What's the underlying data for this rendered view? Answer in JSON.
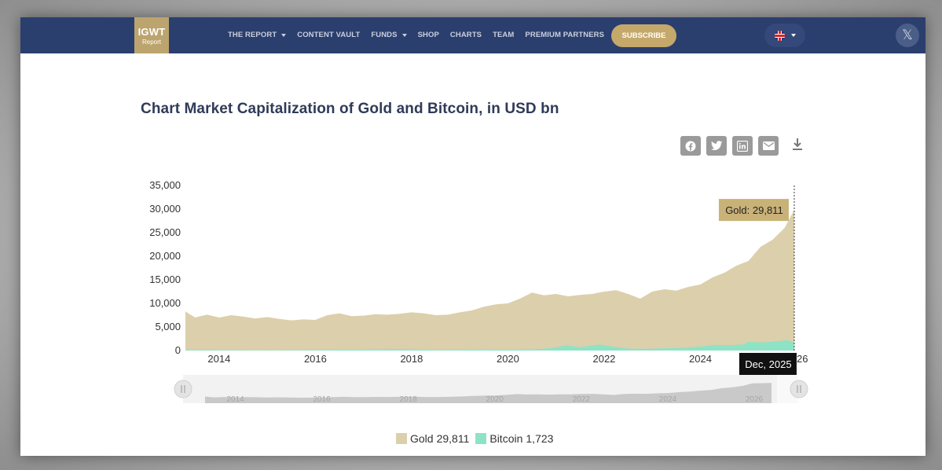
{
  "header": {
    "logo_main": "IGWT",
    "logo_sub": "Report",
    "nav_items": [
      {
        "label": "THE REPORT",
        "dropdown": true
      },
      {
        "label": "CONTENT VAULT",
        "dropdown": false
      },
      {
        "label": "FUNDS",
        "dropdown": true
      },
      {
        "label": "SHOP",
        "dropdown": false
      },
      {
        "label": "CHARTS",
        "dropdown": false
      },
      {
        "label": "TEAM",
        "dropdown": false
      },
      {
        "label": "PREMIUM PARTNERS",
        "dropdown": false
      }
    ],
    "subscribe_label": "SUBSCRIBE",
    "language_icon": "uk-flag-icon",
    "social_icon": "x-icon",
    "colors": {
      "navbar": "#2b3f6e",
      "gold_accent": "#c5a96a"
    }
  },
  "share": {
    "icons": [
      "facebook-icon",
      "twitter-icon",
      "linkedin-icon",
      "email-icon"
    ],
    "download_icon": "download-icon"
  },
  "tooltip": {
    "series_label": "Gold: 29,811",
    "date_label": "Dec, 2025"
  },
  "legend": [
    {
      "name": "Gold",
      "value": "29,811",
      "color": "#dccfab"
    },
    {
      "name": "Bitcoin",
      "value": "1,723",
      "color": "#8ee3c5"
    }
  ],
  "chart_data": {
    "type": "area",
    "title": "Chart Market Capitalization of Gold and Bitcoin, in USD bn",
    "xlabel": "",
    "ylabel": "",
    "x_ticks": [
      "2014",
      "2016",
      "2018",
      "2020",
      "2022",
      "2024",
      "2026"
    ],
    "y_ticks": [
      "0",
      "5,000",
      "10,000",
      "15,000",
      "20,000",
      "25,000",
      "30,000",
      "35,000"
    ],
    "ylim": [
      0,
      35000
    ],
    "xlim": [
      2013.3,
      2026.0
    ],
    "grid": false,
    "legend_position": "bottom",
    "navigator_ticks": [
      "2014",
      "2016",
      "2018",
      "2020",
      "2022",
      "2024",
      "2026"
    ],
    "series": [
      {
        "name": "Gold",
        "color": "#dccfab",
        "x": [
          2013.3,
          2013.5,
          2013.75,
          2014.0,
          2014.25,
          2014.5,
          2014.75,
          2015.0,
          2015.25,
          2015.5,
          2015.75,
          2016.0,
          2016.25,
          2016.5,
          2016.75,
          2017.0,
          2017.25,
          2017.5,
          2017.75,
          2018.0,
          2018.25,
          2018.5,
          2018.75,
          2019.0,
          2019.25,
          2019.5,
          2019.75,
          2020.0,
          2020.25,
          2020.5,
          2020.75,
          2021.0,
          2021.25,
          2021.5,
          2021.75,
          2022.0,
          2022.25,
          2022.5,
          2022.75,
          2023.0,
          2023.25,
          2023.5,
          2023.75,
          2024.0,
          2024.25,
          2024.5,
          2024.75,
          2025.0,
          2025.25,
          2025.5,
          2025.75,
          2025.95
        ],
        "values": [
          8300,
          7000,
          7600,
          7000,
          7500,
          7200,
          6800,
          7100,
          6700,
          6400,
          6600,
          6500,
          7500,
          7900,
          7300,
          7400,
          7700,
          7600,
          7800,
          8100,
          7900,
          7500,
          7600,
          8100,
          8500,
          9300,
          9800,
          10000,
          11000,
          12300,
          11700,
          12000,
          11500,
          11800,
          12000,
          12500,
          12800,
          12000,
          11000,
          12500,
          13000,
          12700,
          13500,
          14000,
          15500,
          16500,
          18000,
          19000,
          22000,
          23500,
          26000,
          29811
        ]
      },
      {
        "name": "Bitcoin",
        "color": "#8ee3c5",
        "x": [
          2013.3,
          2014.0,
          2015.0,
          2016.0,
          2017.0,
          2017.75,
          2018.0,
          2018.5,
          2019.0,
          2019.5,
          2020.0,
          2020.5,
          2020.9,
          2021.2,
          2021.5,
          2021.9,
          2022.2,
          2022.5,
          2022.9,
          2023.2,
          2023.6,
          2024.0,
          2024.3,
          2024.6,
          2024.9,
          2025.0,
          2025.3,
          2025.6,
          2025.8,
          2025.95
        ],
        "values": [
          150,
          100,
          80,
          110,
          180,
          300,
          200,
          120,
          150,
          200,
          180,
          200,
          500,
          1100,
          700,
          1300,
          800,
          400,
          350,
          450,
          550,
          850,
          1200,
          1150,
          1300,
          1850,
          1700,
          2000,
          2200,
          1723
        ]
      }
    ]
  }
}
